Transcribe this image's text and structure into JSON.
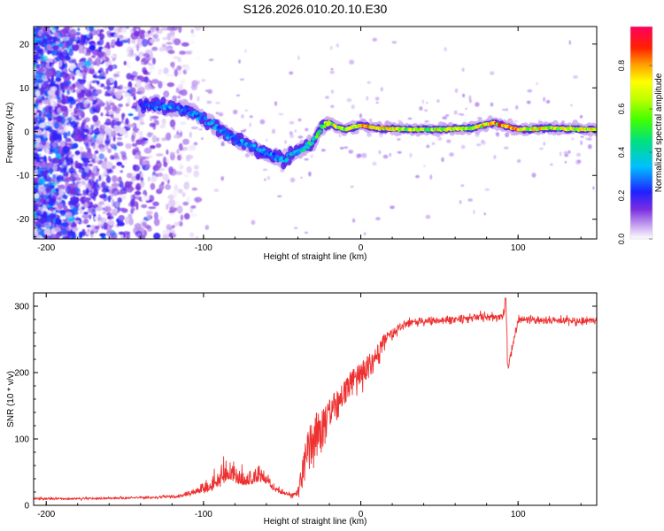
{
  "chart_data": [
    {
      "type": "heatmap",
      "title": "S126.2026.010.20.10.E30",
      "xlabel": "Height of straight line (km)",
      "ylabel": "Frequency (Hz)",
      "xlim": [
        -208,
        150
      ],
      "ylim": [
        -24.5,
        24
      ],
      "x_ticks": [
        -200,
        -100,
        0,
        100
      ],
      "y_ticks": [
        -20,
        -10,
        0,
        10,
        20
      ],
      "colorbar": {
        "label": "Normalized spectral amplitude",
        "range": [
          0.0,
          0.98
        ],
        "ticks": [
          0.0,
          0.2,
          0.4,
          0.6,
          0.8
        ],
        "colors": [
          "#ffffff",
          "#c9a8f0",
          "#7a2ee0",
          "#2020ff",
          "#00c0ff",
          "#00e080",
          "#40ff00",
          "#c0ff00",
          "#ffff00",
          "#ffa000",
          "#ff2000",
          "#ff0060"
        ]
      },
      "ridge": {
        "x": [
          -140,
          -130,
          -120,
          -110,
          -100,
          -90,
          -80,
          -70,
          -60,
          -50,
          -40,
          -30,
          -25,
          -20,
          -15,
          -10,
          -5,
          0,
          10,
          30,
          50,
          70,
          85,
          100,
          120,
          150
        ],
        "freq": [
          6,
          6,
          5.5,
          5,
          3,
          0.5,
          -1.5,
          -3.5,
          -5,
          -6.5,
          -4.5,
          -2.5,
          1,
          2,
          1,
          0.5,
          1,
          1.5,
          0.8,
          0.5,
          0.5,
          0.8,
          2,
          0.5,
          0.8,
          0.5
        ],
        "amplitude": [
          0.25,
          0.3,
          0.35,
          0.3,
          0.35,
          0.35,
          0.3,
          0.35,
          0.3,
          0.35,
          0.4,
          0.55,
          0.6,
          0.75,
          0.75,
          0.7,
          0.75,
          0.8,
          0.9,
          0.7,
          0.75,
          0.7,
          0.9,
          0.85,
          0.75,
          0.8
        ]
      }
    },
    {
      "type": "line",
      "xlabel": "Height of straight line (km)",
      "ylabel": "SNR (10 * v/v)",
      "xlim": [
        -208,
        150
      ],
      "ylim": [
        0,
        320
      ],
      "x_ticks": [
        -200,
        -100,
        0,
        100
      ],
      "y_ticks": [
        0,
        100,
        200,
        300
      ],
      "series": [
        {
          "name": "SNR",
          "color": "#ee3030",
          "x": [
            -208,
            -180,
            -150,
            -130,
            -115,
            -105,
            -95,
            -90,
            -85,
            -80,
            -75,
            -70,
            -65,
            -60,
            -55,
            -50,
            -45,
            -40,
            -35,
            -30,
            -25,
            -20,
            -15,
            -10,
            -5,
            0,
            5,
            10,
            15,
            20,
            25,
            30,
            40,
            50,
            60,
            70,
            80,
            90,
            92,
            94,
            100,
            110,
            120,
            130,
            140,
            150
          ],
          "y": [
            10,
            10,
            11,
            12,
            14,
            20,
            30,
            40,
            55,
            45,
            40,
            40,
            45,
            40,
            25,
            20,
            15,
            20,
            80,
            110,
            130,
            140,
            155,
            175,
            190,
            200,
            215,
            230,
            250,
            260,
            270,
            275,
            278,
            278,
            280,
            282,
            285,
            282,
            300,
            210,
            280,
            280,
            278,
            278,
            278,
            278
          ],
          "noise": [
            5,
            5,
            5,
            5,
            8,
            15,
            30,
            45,
            55,
            40,
            35,
            30,
            30,
            25,
            15,
            10,
            8,
            20,
            55,
            80,
            70,
            60,
            55,
            50,
            45,
            40,
            35,
            30,
            25,
            15,
            15,
            15,
            18,
            18,
            18,
            18,
            18,
            18,
            30,
            20,
            15,
            15,
            15,
            15,
            15,
            15
          ]
        }
      ]
    }
  ]
}
